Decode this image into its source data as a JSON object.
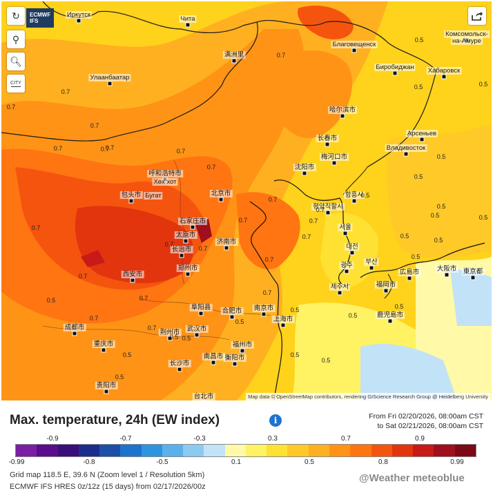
{
  "map": {
    "badge_line1": "ECMWF",
    "badge_line2": "IFS",
    "controls": {
      "refresh_icon": "refresh-icon",
      "location_icon": "location-pin-icon",
      "zoom_icon": "zoom-icon",
      "city_label": "CITY",
      "share_icon": "share-icon"
    },
    "attribution": "Map data © OpenStreetMap contributors, rendering GIScience Research Group @ Heidelberg University",
    "places": [
      {
        "name": "Иркутск"
      },
      {
        "name": "Чита"
      },
      {
        "name": "Улаанбаатар"
      },
      {
        "name": "满洲里"
      },
      {
        "name": "Благовещенск"
      },
      {
        "name": "Комсомольск-"
      },
      {
        "name": "на-Амуре"
      },
      {
        "name": "Биробиджан"
      },
      {
        "name": "Хабаровск"
      },
      {
        "name": "哈尔滨市"
      },
      {
        "name": "Арсеньев"
      },
      {
        "name": "Владивосток"
      },
      {
        "name": "长春市"
      },
      {
        "name": "梅河口市"
      },
      {
        "name": "沈阳市"
      },
      {
        "name": "呼和浩特市"
      },
      {
        "name": "Хөх хот"
      },
      {
        "name": "包头市"
      },
      {
        "name": "Бугат"
      },
      {
        "name": "北京市"
      },
      {
        "name": "함흥시"
      },
      {
        "name": "평양직할시"
      },
      {
        "name": "石家庄市"
      },
      {
        "name": "太原市"
      },
      {
        "name": "济南市"
      },
      {
        "name": "长治市"
      },
      {
        "name": "서울"
      },
      {
        "name": "대전"
      },
      {
        "name": "광주"
      },
      {
        "name": "부산"
      },
      {
        "name": "제주시"
      },
      {
        "name": "郑州市"
      },
      {
        "name": "西安市"
      },
      {
        "name": "福岡市"
      },
      {
        "name": "大阪市"
      },
      {
        "name": "広島市"
      },
      {
        "name": "東京都"
      },
      {
        "name": "鹿児島市"
      },
      {
        "name": "阜阳县"
      },
      {
        "name": "合肥市"
      },
      {
        "name": "南京市"
      },
      {
        "name": "上海市"
      },
      {
        "name": "成都市"
      },
      {
        "name": "荆州市"
      },
      {
        "name": "武汉市"
      },
      {
        "name": "重庆市"
      },
      {
        "name": "南昌市"
      },
      {
        "name": "衡阳市"
      },
      {
        "name": "长沙市"
      },
      {
        "name": "贵阳市"
      },
      {
        "name": "福州市"
      },
      {
        "name": "台北市"
      }
    ],
    "values": [
      "0.7",
      "0.7",
      "0.7",
      "0.5",
      "0.7",
      "0.5",
      "0.7",
      "0.5",
      "0.5",
      "0.7",
      "0.7",
      "0.7",
      "0.5",
      "0.7",
      "0.7",
      "0.5",
      "0.5",
      "0.5",
      "0.7",
      "0.5",
      "0.7",
      "0.7",
      "0.5",
      "0.5",
      "0.7",
      "0.7",
      "0.5",
      "0.5",
      "0.5",
      "0.5",
      "0.5",
      "0.5",
      "0.5",
      "0.5",
      "0.5",
      "0.5",
      "0.7",
      "0.7",
      "0.7",
      "0.7",
      "0.7",
      "0.7",
      "0.7",
      "0.7",
      "0.5",
      "0.5"
    ]
  },
  "legend": {
    "title": "Max. temperature, 24h (EW index)",
    "info_icon": "info-icon",
    "period_from": "From Fri 02/20/2026, 08:00am CST",
    "period_to": "to Sat 02/21/2026, 08:00am CST",
    "colors": [
      "#7b1fa2",
      "#5a0d8e",
      "#3a0f7a",
      "#1c2e8c",
      "#1d4fa8",
      "#1d74cc",
      "#2d95e0",
      "#5bb0ec",
      "#8ccaf2",
      "#c2e2f7",
      "#fff9a8",
      "#fff263",
      "#ffe133",
      "#ffc928",
      "#ffb020",
      "#ff9316",
      "#ff7511",
      "#f5540f",
      "#e2350d",
      "#c81a18",
      "#a00f1d",
      "#7b0a16"
    ],
    "ticks_top": [
      "-0.9",
      "-0.7",
      "-0.3",
      "0.3",
      "0.7",
      "0.9"
    ],
    "ticks_bottom": [
      "-0.99",
      "-0.8",
      "-0.5",
      "0.1",
      "0.5",
      "0.8",
      "0.99"
    ],
    "grid_info": "Grid map 118.5 E, 39.6 N (Zoom level 1 / Resolution 5km)",
    "model_info": "ECMWF IFS HRES 0z/12z (15 days) from 02/17/2026/00z",
    "brand": "@Weather meteoblue"
  }
}
